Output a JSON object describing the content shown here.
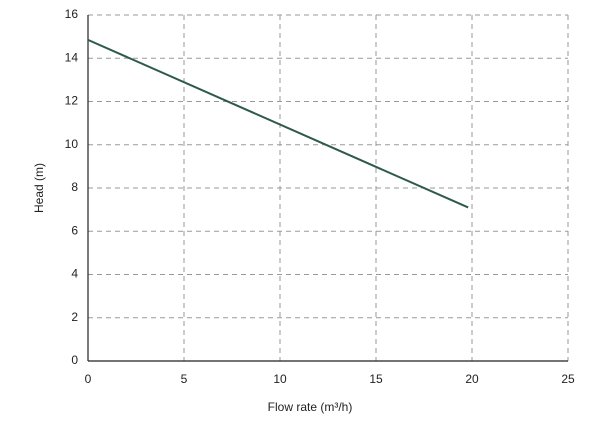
{
  "chart_data": {
    "type": "line",
    "x_label": "Flow rate (m³/h)",
    "y_label": "Head (m)",
    "x": [
      0,
      19.8
    ],
    "series": [
      {
        "name": null,
        "color": "#2e5a4e",
        "values": [
          14.85,
          7.1
        ]
      }
    ],
    "xlim": [
      0,
      25
    ],
    "xticks": [
      0,
      5,
      10,
      15,
      20,
      25
    ],
    "ylim": [
      0,
      16
    ],
    "yticks": [
      0,
      2,
      4,
      6,
      8,
      10,
      12,
      14,
      16
    ],
    "grid": true
  }
}
